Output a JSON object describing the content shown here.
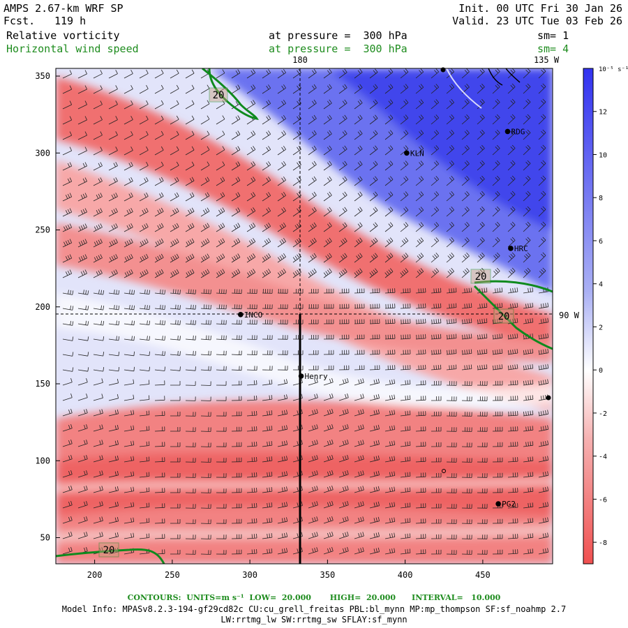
{
  "header": {
    "model": "AMPS 2.67-km WRF SP",
    "fcst_label": "Fcst.",
    "fcst_value": "119 h",
    "init": "Init. 00 UTC Fri 30 Jan 26",
    "valid": "Valid. 23 UTC Tue 03 Feb 26",
    "field1": "Relative vorticity",
    "field1_pressure": "at pressure =  300 hPa",
    "field1_sm": "sm= 1",
    "field2": "Horizontal wind speed",
    "field2_pressure": "at pressure =  300 hPa",
    "field2_sm": "sm= 4"
  },
  "map_labels": {
    "lon_180": "180",
    "lon_135w": "135 W",
    "lon_90w": "90 W",
    "contour_label": "20",
    "stations": [
      "INCO",
      "Henry",
      "KLN",
      "RDG",
      "HRC",
      "PG2"
    ]
  },
  "colorbar": {
    "units": "10⁻⁵ s⁻¹",
    "ticks": [
      "12",
      "10",
      "8",
      "6",
      "4",
      "2",
      "0",
      "-2",
      "-4",
      "-6",
      "-8"
    ],
    "colors": {
      "positive": "#3a3af0",
      "negative": "#f04848",
      "zero": "#ffffff"
    }
  },
  "footer": {
    "contours": "CONTOURS:  UNITS=m s⁻¹  LOW=  20.000       HIGH=  20.000      INTERVAL=   10.000",
    "model_info": "Model Info: MPASv8.2.3-194-gf29cd82c CU:cu_grell_freitas PBL:bl_mynn MP:mp_thompson SF:sf_noahmp 2.7",
    "model_info2": "LW:rrtmg_lw SW:rrtmg_sw SFLAY:sf_mynn"
  },
  "chart_data": {
    "type": "heatmap",
    "title": "Relative vorticity / Horizontal wind speed at 300 hPa",
    "x_ticks": [
      "200",
      "250",
      "300",
      "350",
      "400",
      "450"
    ],
    "y_ticks": [
      "350",
      "300",
      "250",
      "200",
      "150",
      "100",
      "50"
    ],
    "xlim": [
      175,
      495
    ],
    "ylim": [
      33,
      355
    ],
    "colorbar_range": [
      -9,
      14
    ],
    "stations": [
      {
        "name": "INCO",
        "x": 294,
        "y": 195
      },
      {
        "name": "Henry",
        "x": 333,
        "y": 155
      },
      {
        "name": "KLN",
        "x": 401,
        "y": 300
      },
      {
        "name": "RDG",
        "x": 466,
        "y": 314
      },
      {
        "name": "HRC",
        "x": 468,
        "y": 238
      },
      {
        "name": "PG2",
        "x": 460,
        "y": 72
      }
    ],
    "contours": {
      "units": "m s-1",
      "low": 20.0,
      "high": 20.0,
      "interval": 10.0
    }
  }
}
